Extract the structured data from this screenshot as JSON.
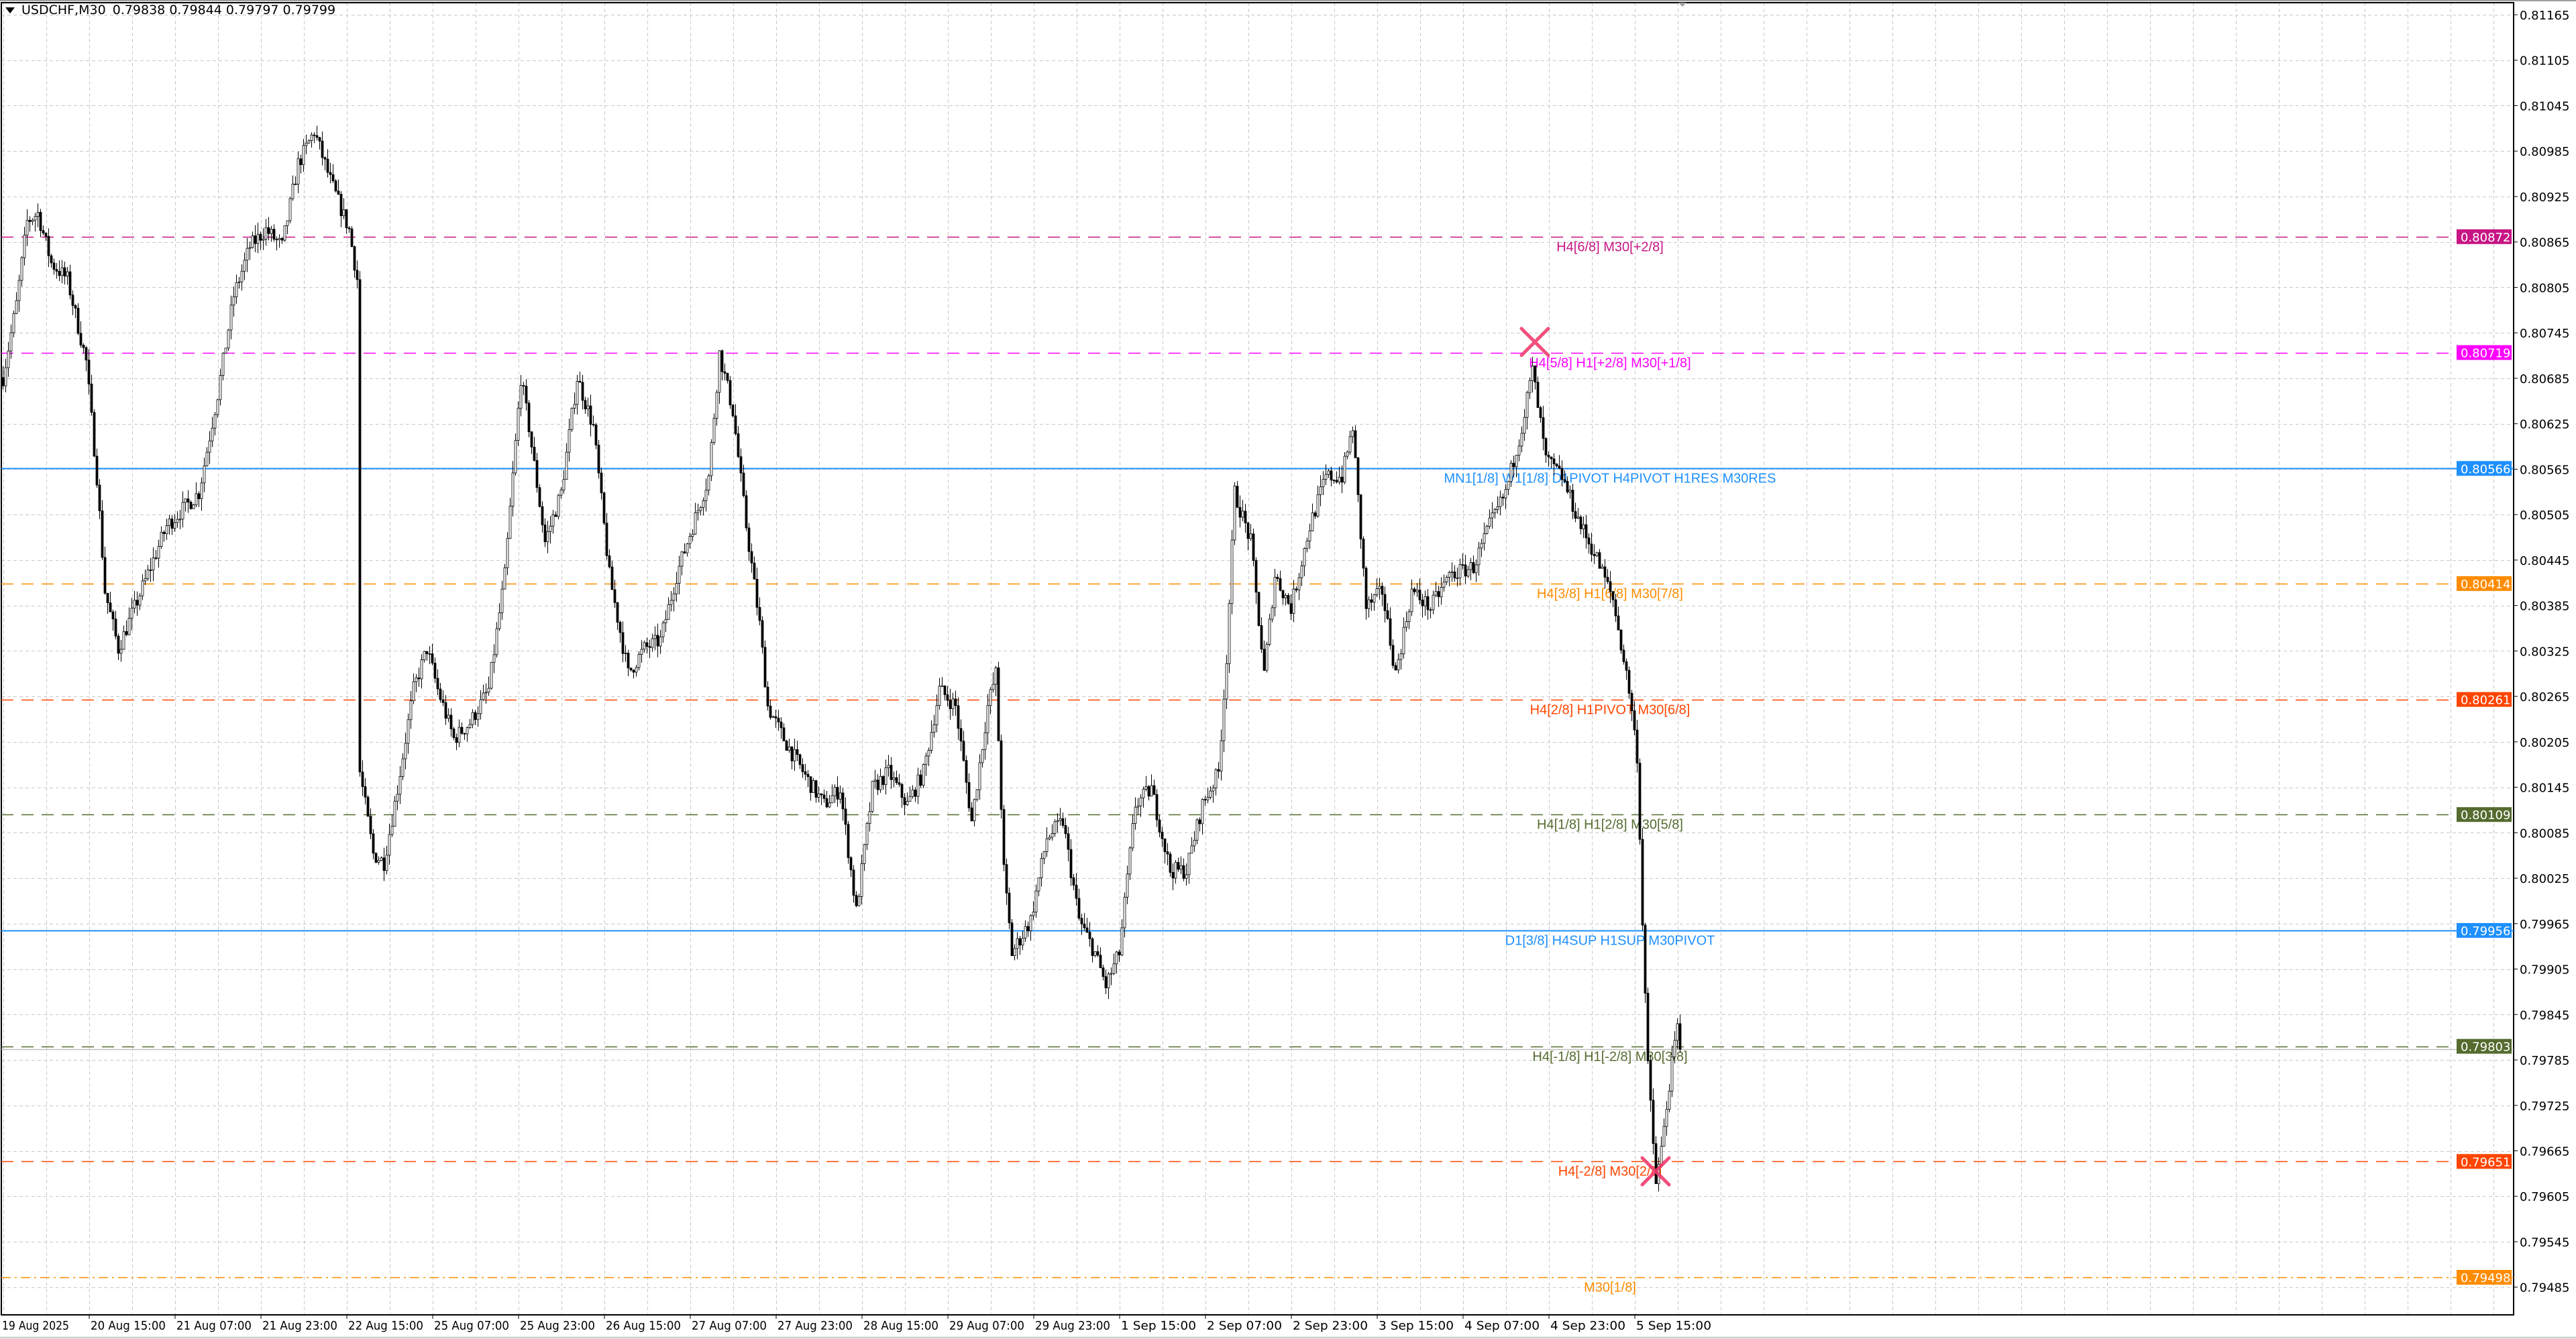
{
  "header": {
    "symbol_timeframe": "USDCHF,M30",
    "ohlc": "0.79838 0.79844 0.79797 0.79799"
  },
  "chart_data": {
    "type": "candlestick",
    "title": "USDCHF,M30",
    "ylim": [
      0.79485,
      0.81165
    ],
    "grid": true,
    "y_ticks": [
      "0.81165",
      "0.81105",
      "0.81045",
      "0.80985",
      "0.80925",
      "0.80865",
      "0.80805",
      "0.80745",
      "0.80685",
      "0.80625",
      "0.80565",
      "0.80505",
      "0.80445",
      "0.80385",
      "0.80325",
      "0.80265",
      "0.80205",
      "0.80145",
      "0.80085",
      "0.80025",
      "0.79965",
      "0.79905",
      "0.79845",
      "0.79785",
      "0.79725",
      "0.79665",
      "0.79605",
      "0.79545",
      "0.79485"
    ],
    "x_ticks": [
      "19 Aug 2025",
      "20 Aug 15:00",
      "21 Aug 07:00",
      "21 Aug 23:00",
      "22 Aug 15:00",
      "25 Aug 07:00",
      "25 Aug 23:00",
      "26 Aug 15:00",
      "27 Aug 07:00",
      "27 Aug 23:00",
      "28 Aug 15:00",
      "29 Aug 07:00",
      "29 Aug 23:00",
      "1 Sep 15:00",
      "2 Sep 07:00",
      "2 Sep 23:00",
      "3 Sep 15:00",
      "4 Sep 07:00",
      "4 Sep 23:00",
      "5 Sep 15:00"
    ],
    "price_path": [
      [
        0,
        0.80686
      ],
      [
        5,
        0.80783
      ],
      [
        9,
        0.80892
      ],
      [
        13,
        0.80903
      ],
      [
        18,
        0.80837
      ],
      [
        24,
        0.80816
      ],
      [
        31,
        0.80707
      ],
      [
        35,
        0.80555
      ],
      [
        38,
        0.80404
      ],
      [
        43,
        0.80328
      ],
      [
        49,
        0.80382
      ],
      [
        55,
        0.80436
      ],
      [
        61,
        0.8049
      ],
      [
        67,
        0.80512
      ],
      [
        73,
        0.80534
      ],
      [
        80,
        0.80664
      ],
      [
        86,
        0.80794
      ],
      [
        92,
        0.80859
      ],
      [
        98,
        0.80881
      ],
      [
        104,
        0.80859
      ],
      [
        110,
        0.80968
      ],
      [
        116,
        0.81011
      ],
      [
        122,
        0.80946
      ],
      [
        129,
        0.80881
      ],
      [
        132,
        0.80816
      ],
      [
        133,
        0.80165
      ],
      [
        138,
        0.80057
      ],
      [
        142,
        0.80046
      ],
      [
        147,
        0.80143
      ],
      [
        153,
        0.80274
      ],
      [
        158,
        0.80328
      ],
      [
        162,
        0.80274
      ],
      [
        168,
        0.80209
      ],
      [
        174,
        0.8023
      ],
      [
        181,
        0.80274
      ],
      [
        187,
        0.80425
      ],
      [
        193,
        0.80686
      ],
      [
        196,
        0.80621
      ],
      [
        202,
        0.80469
      ],
      [
        208,
        0.80534
      ],
      [
        214,
        0.80686
      ],
      [
        220,
        0.80621
      ],
      [
        226,
        0.80425
      ],
      [
        233,
        0.80295
      ],
      [
        239,
        0.80328
      ],
      [
        245,
        0.80339
      ],
      [
        251,
        0.80425
      ],
      [
        257,
        0.8049
      ],
      [
        263,
        0.80555
      ],
      [
        267,
        0.80718
      ],
      [
        272,
        0.80642
      ],
      [
        277,
        0.8049
      ],
      [
        282,
        0.8036
      ],
      [
        285,
        0.80252
      ],
      [
        291,
        0.80209
      ],
      [
        300,
        0.80154
      ],
      [
        306,
        0.80122
      ],
      [
        312,
        0.80143
      ],
      [
        318,
        0.79981
      ],
      [
        324,
        0.80143
      ],
      [
        330,
        0.80165
      ],
      [
        337,
        0.80122
      ],
      [
        343,
        0.80165
      ],
      [
        349,
        0.80274
      ],
      [
        355,
        0.80252
      ],
      [
        361,
        0.801
      ],
      [
        367,
        0.80252
      ],
      [
        370,
        0.80295
      ],
      [
        373,
        0.80035
      ],
      [
        376,
        0.79926
      ],
      [
        383,
        0.7997
      ],
      [
        389,
        0.80078
      ],
      [
        395,
        0.801
      ],
      [
        401,
        0.7997
      ],
      [
        407,
        0.79926
      ],
      [
        411,
        0.79883
      ],
      [
        416,
        0.79926
      ],
      [
        422,
        0.80122
      ],
      [
        428,
        0.80143
      ],
      [
        435,
        0.80035
      ],
      [
        441,
        0.80035
      ],
      [
        447,
        0.80122
      ],
      [
        453,
        0.80165
      ],
      [
        456,
        0.80317
      ],
      [
        459,
        0.80534
      ],
      [
        465,
        0.80469
      ],
      [
        470,
        0.80295
      ],
      [
        474,
        0.80425
      ],
      [
        480,
        0.80382
      ],
      [
        487,
        0.8049
      ],
      [
        493,
        0.80555
      ],
      [
        499,
        0.80555
      ],
      [
        503,
        0.80621
      ],
      [
        508,
        0.80382
      ],
      [
        514,
        0.80404
      ],
      [
        519,
        0.80295
      ],
      [
        525,
        0.80404
      ],
      [
        532,
        0.80382
      ],
      [
        539,
        0.80425
      ],
      [
        548,
        0.80436
      ],
      [
        554,
        0.8049
      ],
      [
        560,
        0.80534
      ],
      [
        566,
        0.80621
      ],
      [
        570,
        0.80696
      ],
      [
        575,
        0.80577
      ],
      [
        581,
        0.80555
      ],
      [
        588,
        0.8049
      ],
      [
        594,
        0.80447
      ],
      [
        600,
        0.80393
      ],
      [
        606,
        0.80274
      ],
      [
        609,
        0.80187
      ],
      [
        611,
        0.7997
      ],
      [
        613,
        0.79775
      ],
      [
        616,
        0.79623
      ],
      [
        618,
        0.79666
      ],
      [
        621,
        0.79753
      ],
      [
        624,
        0.79829
      ],
      [
        625,
        0.79799
      ]
    ],
    "levels": [
      {
        "price": "0.80872",
        "label": "H4[6/8] M30[+2/8]",
        "color": "#C71585",
        "style": "dash"
      },
      {
        "price": "0.80719",
        "label": "H4[5/8] H1[+2/8] M30[+1/8]",
        "color": "#FF00FF",
        "style": "dash"
      },
      {
        "price": "0.80566",
        "label": "MN1[1/8] W1[1/8] D1PIVOT H4PIVOT H1RES M30RES",
        "color": "#1E90FF",
        "style": "solid"
      },
      {
        "price": "0.80414",
        "label": "H4[3/8] H1[6/8] M30[7/8]",
        "color": "#FF8C00",
        "style": "dash"
      },
      {
        "price": "0.80261",
        "label": "H4[2/8] H1PIVOT M30[6/8]",
        "color": "#FF4500",
        "style": "dash"
      },
      {
        "price": "0.80109",
        "label": "H4[1/8] H1[2/8] M30[5/8]",
        "color": "#556B2F",
        "style": "dash"
      },
      {
        "price": "0.79956",
        "label": "D1[3/8] H4SUP H1SUP M30PIVOT",
        "color": "#1E90FF",
        "style": "solid"
      },
      {
        "price": "0.79803",
        "label": "H4[-1/8] H1[-2/8] M30[3/8]",
        "color": "#556B2F",
        "style": "dash"
      },
      {
        "price": "0.79651",
        "label": "H4[-2/8] M30[2/8]",
        "color": "#FF4500",
        "style": "dash"
      },
      {
        "price": "0.79498",
        "label": "M30[1/8]",
        "color": "#FF8C00",
        "style": "dashdot"
      }
    ],
    "bid_price": 0.79799,
    "markers": [
      {
        "type": "cross",
        "bar": 571,
        "price": 0.80733,
        "color": "#F03C6E"
      },
      {
        "type": "cross",
        "bar": 616,
        "price": 0.79638,
        "color": "#F03C6E"
      }
    ]
  }
}
